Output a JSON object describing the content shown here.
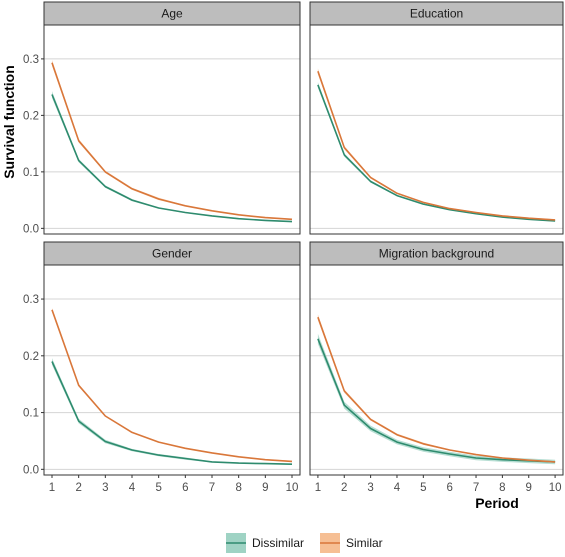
{
  "chart_data": {
    "type": "line",
    "xlabel": "Period",
    "ylabel": "Survival function",
    "x": [
      1,
      2,
      3,
      4,
      5,
      6,
      7,
      8,
      9,
      10
    ],
    "xticks": [
      "1",
      "2",
      "3",
      "4",
      "5",
      "6",
      "7",
      "8",
      "9",
      "10"
    ],
    "yticks": [
      "0.0",
      "0.1",
      "0.2",
      "0.3"
    ],
    "ylim": [
      -0.01,
      0.36
    ],
    "xlim": [
      0.7,
      10.3
    ],
    "grid": true,
    "legend_position": "bottom",
    "legend": [
      {
        "label": "Dissimilar",
        "color": "#2e8b6e",
        "fill": "#9fd3c4"
      },
      {
        "label": "Similar",
        "color": "#d9773a",
        "fill": "#f6bf94"
      }
    ],
    "panels": [
      {
        "title": "Age",
        "series": [
          {
            "name": "Dissimilar",
            "values": [
              0.237,
              0.12,
              0.074,
              0.05,
              0.036,
              0.028,
              0.022,
              0.017,
              0.014,
              0.012
            ],
            "lower": [
              0.231,
              0.117,
              0.072,
              0.048,
              0.035,
              0.027,
              0.021,
              0.016,
              0.013,
              0.011
            ],
            "upper": [
              0.243,
              0.123,
              0.076,
              0.052,
              0.037,
              0.029,
              0.023,
              0.018,
              0.015,
              0.013
            ]
          },
          {
            "name": "Similar",
            "values": [
              0.293,
              0.155,
              0.1,
              0.07,
              0.052,
              0.04,
              0.031,
              0.024,
              0.019,
              0.016
            ],
            "lower": [
              0.288,
              0.152,
              0.098,
              0.068,
              0.05,
              0.039,
              0.03,
              0.023,
              0.018,
              0.015
            ],
            "upper": [
              0.298,
              0.158,
              0.102,
              0.072,
              0.054,
              0.041,
              0.032,
              0.025,
              0.02,
              0.017
            ]
          }
        ]
      },
      {
        "title": "Education",
        "series": [
          {
            "name": "Dissimilar",
            "values": [
              0.254,
              0.13,
              0.083,
              0.058,
              0.043,
              0.033,
              0.026,
              0.02,
              0.016,
              0.013
            ],
            "lower": [
              0.249,
              0.127,
              0.081,
              0.057,
              0.042,
              0.032,
              0.025,
              0.019,
              0.015,
              0.012
            ],
            "upper": [
              0.259,
              0.133,
              0.085,
              0.059,
              0.044,
              0.034,
              0.027,
              0.021,
              0.017,
              0.014
            ]
          },
          {
            "name": "Similar",
            "values": [
              0.278,
              0.143,
              0.09,
              0.062,
              0.046,
              0.035,
              0.028,
              0.022,
              0.018,
              0.015
            ],
            "lower": [
              0.273,
              0.14,
              0.088,
              0.061,
              0.045,
              0.034,
              0.027,
              0.021,
              0.017,
              0.014
            ],
            "upper": [
              0.283,
              0.146,
              0.092,
              0.063,
              0.047,
              0.036,
              0.029,
              0.023,
              0.019,
              0.016
            ]
          }
        ]
      },
      {
        "title": "Gender",
        "series": [
          {
            "name": "Dissimilar",
            "values": [
              0.19,
              0.085,
              0.049,
              0.034,
              0.025,
              0.019,
              0.013,
              0.011,
              0.01,
              0.009
            ],
            "lower": [
              0.184,
              0.081,
              0.046,
              0.032,
              0.023,
              0.017,
              0.012,
              0.01,
              0.009,
              0.008
            ],
            "upper": [
              0.196,
              0.089,
              0.052,
              0.036,
              0.027,
              0.021,
              0.014,
              0.012,
              0.011,
              0.01
            ]
          },
          {
            "name": "Similar",
            "values": [
              0.281,
              0.148,
              0.094,
              0.065,
              0.048,
              0.037,
              0.029,
              0.022,
              0.017,
              0.014
            ],
            "lower": [
              0.278,
              0.146,
              0.093,
              0.064,
              0.047,
              0.036,
              0.028,
              0.021,
              0.016,
              0.013
            ],
            "upper": [
              0.284,
              0.15,
              0.095,
              0.066,
              0.049,
              0.038,
              0.03,
              0.023,
              0.018,
              0.015
            ]
          }
        ]
      },
      {
        "title": "Migration background",
        "series": [
          {
            "name": "Dissimilar",
            "values": [
              0.23,
              0.113,
              0.072,
              0.048,
              0.035,
              0.027,
              0.02,
              0.017,
              0.015,
              0.013
            ],
            "lower": [
              0.221,
              0.107,
              0.067,
              0.044,
              0.031,
              0.023,
              0.016,
              0.013,
              0.011,
              0.009
            ],
            "upper": [
              0.239,
              0.119,
              0.077,
              0.052,
              0.039,
              0.031,
              0.024,
              0.021,
              0.019,
              0.017
            ]
          },
          {
            "name": "Similar",
            "values": [
              0.268,
              0.138,
              0.088,
              0.061,
              0.045,
              0.034,
              0.026,
              0.02,
              0.016,
              0.013
            ],
            "lower": [
              0.263,
              0.135,
              0.086,
              0.059,
              0.043,
              0.033,
              0.025,
              0.019,
              0.015,
              0.012
            ],
            "upper": [
              0.273,
              0.141,
              0.09,
              0.063,
              0.047,
              0.035,
              0.027,
              0.021,
              0.017,
              0.014
            ]
          }
        ]
      }
    ]
  }
}
